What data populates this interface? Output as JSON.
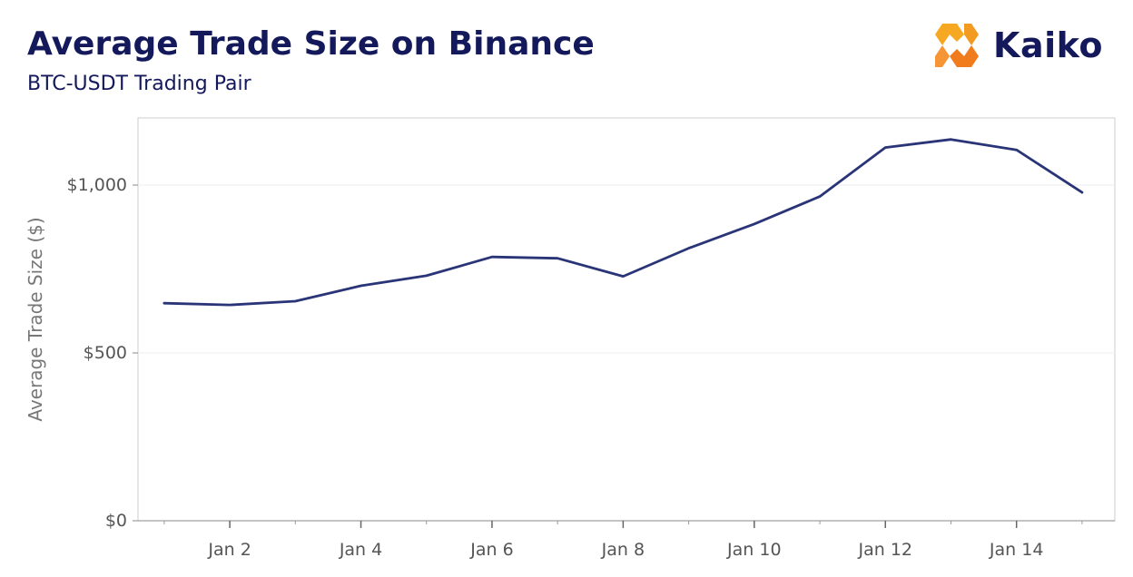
{
  "header": {
    "title": "Average Trade Size on Binance",
    "subtitle": "BTC-USDT Trading Pair"
  },
  "logo": {
    "text": "Kaiko",
    "icon": "kaiko-hexagon-icon",
    "colors": [
      "#f7a823",
      "#f07c1e"
    ]
  },
  "colors": {
    "line": "#2a3577",
    "title": "#13195a",
    "grid": "#eeeeee",
    "frame": "#cccccc"
  },
  "chart_data": {
    "type": "line",
    "title": "Average Trade Size on Binance",
    "subtitle": "BTC-USDT Trading Pair",
    "xlabel": "",
    "ylabel": "Average Trade Size ($)",
    "x": [
      "Jan 1",
      "Jan 2",
      "Jan 3",
      "Jan 4",
      "Jan 5",
      "Jan 6",
      "Jan 7",
      "Jan 8",
      "Jan 9",
      "Jan 10",
      "Jan 11",
      "Jan 12",
      "Jan 13",
      "Jan 14",
      "Jan 15"
    ],
    "x_num": [
      1,
      2,
      3,
      4,
      5,
      6,
      7,
      8,
      9,
      10,
      11,
      12,
      13,
      14,
      15
    ],
    "series": [
      {
        "values": [
          648,
          643,
          654,
          700,
          730,
          786,
          782,
          728,
          812,
          884,
          966,
          1112,
          1136,
          1105,
          978
        ]
      }
    ],
    "xlim": [
      0.6,
      15.5
    ],
    "ylim": [
      0,
      1200
    ],
    "x_ticks": [
      {
        "x": 2,
        "label": "Jan 2"
      },
      {
        "x": 4,
        "label": "Jan 4"
      },
      {
        "x": 6,
        "label": "Jan 6"
      },
      {
        "x": 8,
        "label": "Jan 8"
      },
      {
        "x": 10,
        "label": "Jan 10"
      },
      {
        "x": 12,
        "label": "Jan 12"
      },
      {
        "x": 14,
        "label": "Jan 14"
      }
    ],
    "y_ticks": [
      {
        "y": 0,
        "label": "$0"
      },
      {
        "y": 500,
        "label": "$500"
      },
      {
        "y": 1000,
        "label": "$1,000"
      }
    ],
    "grid": true,
    "legend": "none"
  }
}
